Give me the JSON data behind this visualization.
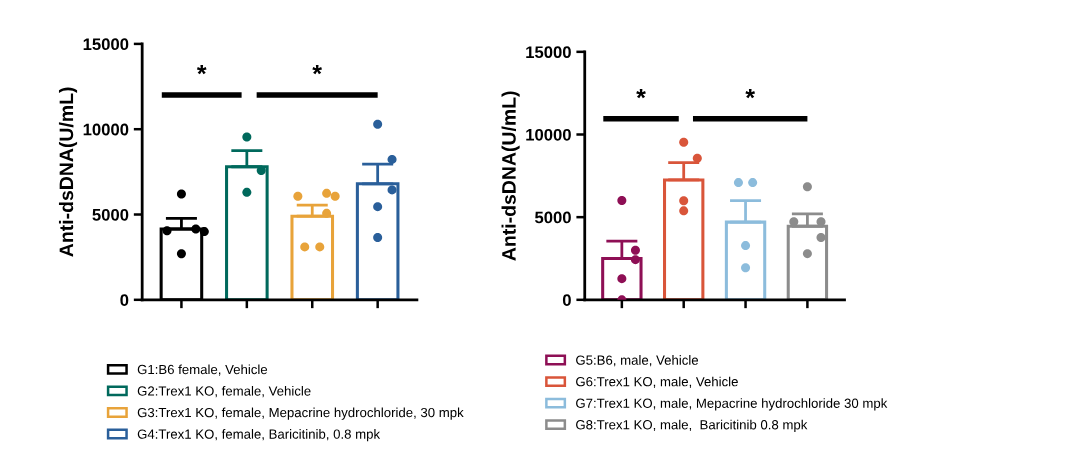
{
  "chart_data": [
    {
      "type": "bar",
      "ylabel": "Anti-dsDNA(U/mL)",
      "categories": [
        null,
        null,
        null,
        null
      ],
      "ylim": [
        0,
        15000
      ],
      "yticks": [
        0,
        5000,
        10000,
        15000
      ],
      "tick_labels": "y",
      "grid": false,
      "legend": "bottom",
      "annotations": [
        "*",
        "*"
      ],
      "series": [
        {
          "name": "G1:B6 female, Vehicle",
          "color": "#000000",
          "values": [
            4150,
            null,
            null,
            null
          ],
          "errors": [
            [
              4150,
              4770
            ],
            null,
            null,
            null
          ]
        },
        {
          "name": "G2:Trex1 KO, female, Vehicle",
          "color": "#00695c",
          "values": [
            null,
            7800,
            null,
            null
          ],
          "errors": [
            null,
            [
              7800,
              8750
            ],
            null,
            null
          ]
        },
        {
          "name": "G3:Trex1 KO, female, Mepacrine hydrochloride, 30 mpk",
          "color": "#e8a33a",
          "values": [
            null,
            null,
            4900,
            null
          ],
          "errors": [
            null,
            null,
            [
              4900,
              5550
            ],
            null
          ]
        },
        {
          "name": "G4:Trex1 KO, female, Baricitinib, 0.8 mpk",
          "color": "#2a5f9a",
          "values": [
            null,
            null,
            null,
            6800
          ],
          "errors": [
            null,
            null,
            null,
            [
              6800,
              7950
            ]
          ]
        },
        {
          "type": "scatter",
          "colors": [
            "#000000",
            "#00695c",
            "#e8a33a",
            "#2a5f9a"
          ],
          "values": [
            6200,
            9540,
            6240,
            10290
          ]
        },
        {
          "type": "scatter",
          "colors": [
            "#000000",
            "#00695c",
            "#e8a33a",
            "#2a5f9a"
          ],
          "values": [
            4150,
            7580,
            6070,
            8230
          ]
        },
        {
          "type": "scatter",
          "colors": [
            "#000000",
            "#00695c",
            "#e8a33a",
            "#2a5f9a"
          ],
          "values": [
            4050,
            6300,
            6070,
            6440
          ]
        },
        {
          "type": "scatter",
          "colors": [
            "#000000",
            "#00695c",
            "#e8a33a",
            "#2a5f9a"
          ],
          "values": [
            4000,
            null,
            5070,
            5460
          ]
        },
        {
          "type": "scatter",
          "colors": [
            "#000000",
            "#00695c",
            "#e8a33a",
            "#2a5f9a"
          ],
          "values": [
            2700,
            null,
            3100,
            3650
          ]
        },
        {
          "type": "scatter",
          "colors": [
            "#000000",
            "#00695c",
            "#e8a33a",
            "#2a5f9a"
          ],
          "values": [
            null,
            null,
            3100,
            null
          ]
        }
      ]
    },
    {
      "type": "bar",
      "ylabel": "Anti-dsDNA(U/mL)",
      "categories": [
        null,
        null,
        null,
        null
      ],
      "ylim": [
        0,
        15000
      ],
      "yticks": [
        0,
        5000,
        10000,
        15000
      ],
      "tick_labels": "y",
      "grid": false,
      "legend": "bottom",
      "annotations": [
        "*",
        "*"
      ],
      "series": [
        {
          "name": "G5:B6, male, Vehicle",
          "color": "#8e0f55",
          "values": [
            2500,
            null,
            null,
            null
          ],
          "errors": [
            [
              2500,
              3550
            ],
            null,
            null,
            null
          ]
        },
        {
          "name": "G6:Trex1 KO, male, Vehicle",
          "color": "#d9553a",
          "values": [
            null,
            7250,
            null,
            null
          ],
          "errors": [
            null,
            [
              7250,
              8300
            ],
            null,
            null
          ]
        },
        {
          "name": "G7:Trex1 KO, male, Mepacrine hydrochloride 30 mpk",
          "color": "#8cbcdc",
          "values": [
            null,
            null,
            4700,
            null
          ],
          "errors": [
            null,
            null,
            [
              4700,
              6000
            ],
            null
          ]
        },
        {
          "name": "G8:Trex1 KO, male,  Baricitinib 0.8 mpk",
          "color": "#8c8c8c",
          "values": [
            null,
            null,
            null,
            4450
          ],
          "errors": [
            null,
            null,
            null,
            [
              4450,
              5200
            ]
          ]
        },
        {
          "type": "scatter",
          "colors": [
            "#8e0f55",
            "#d9553a",
            "#8cbcdc",
            "#8c8c8c"
          ],
          "values": [
            6010,
            9530,
            7090,
            6840
          ]
        },
        {
          "type": "scatter",
          "colors": [
            "#8e0f55",
            "#d9553a",
            "#8cbcdc",
            "#8c8c8c"
          ],
          "values": [
            3000,
            8560,
            7090,
            4720
          ]
        },
        {
          "type": "scatter",
          "colors": [
            "#8e0f55",
            "#d9553a",
            "#8cbcdc",
            "#8c8c8c"
          ],
          "values": [
            2430,
            5990,
            3280,
            4720
          ]
        },
        {
          "type": "scatter",
          "colors": [
            "#8e0f55",
            "#d9553a",
            "#8cbcdc",
            "#8c8c8c"
          ],
          "values": [
            1280,
            5380,
            1940,
            3770
          ]
        },
        {
          "type": "scatter",
          "colors": [
            "#8e0f55",
            "#d9553a",
            "#8cbcdc",
            "#8c8c8c"
          ],
          "values": [
            0,
            null,
            null,
            2790
          ]
        }
      ]
    }
  ]
}
